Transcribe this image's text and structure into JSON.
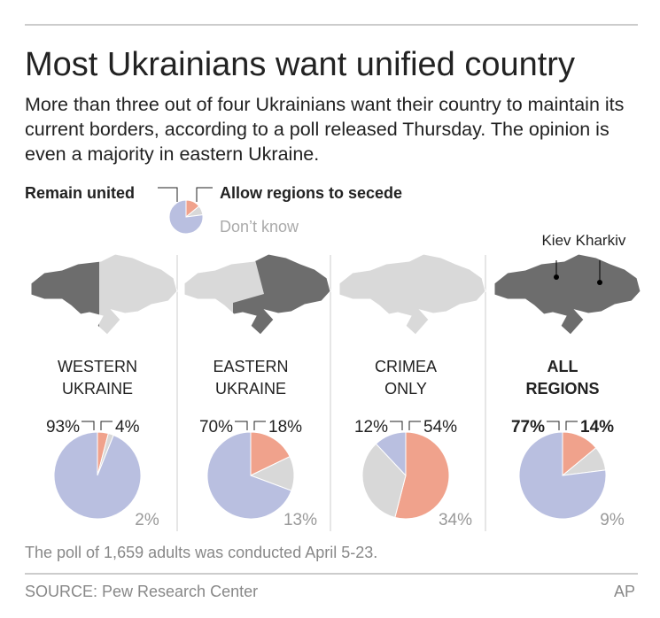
{
  "title": "Most Ukrainians want unified country",
  "subtitle": "More than three out of four Ukrainians want their country to maintain its current borders, according to a poll released Thursday. The opinion is even a majority in eastern Ukraine.",
  "legend": {
    "labels": [
      "Remain united",
      "Allow regions to secede",
      "Don’t know"
    ],
    "colors": [
      "#b9bfe0",
      "#f0a28c",
      "#d8d8d8"
    ]
  },
  "map_labels": [
    "Kiev",
    "Kharkiv"
  ],
  "chart_data": [
    {
      "type": "pie",
      "title": "WESTERN UKRAINE",
      "values": [
        93,
        4,
        2
      ],
      "value_labels": [
        "93%",
        "4%",
        "2%"
      ],
      "bold": false
    },
    {
      "type": "pie",
      "title": "EASTERN UKRAINE",
      "values": [
        70,
        18,
        13
      ],
      "value_labels": [
        "70%",
        "18%",
        "13%"
      ],
      "bold": false
    },
    {
      "type": "pie",
      "title": "CRIMEA ONLY",
      "values": [
        12,
        54,
        34
      ],
      "value_labels": [
        "12%",
        "54%",
        "34%"
      ],
      "bold": false
    },
    {
      "type": "pie",
      "title": "ALL REGIONS",
      "values": [
        77,
        14,
        9
      ],
      "value_labels": [
        "77%",
        "14%",
        "9%"
      ],
      "bold": true
    }
  ],
  "footnote": "The poll of 1,659 adults was conducted April 5-23.",
  "source": "SOURCE: Pew Research Center",
  "credit": "AP"
}
